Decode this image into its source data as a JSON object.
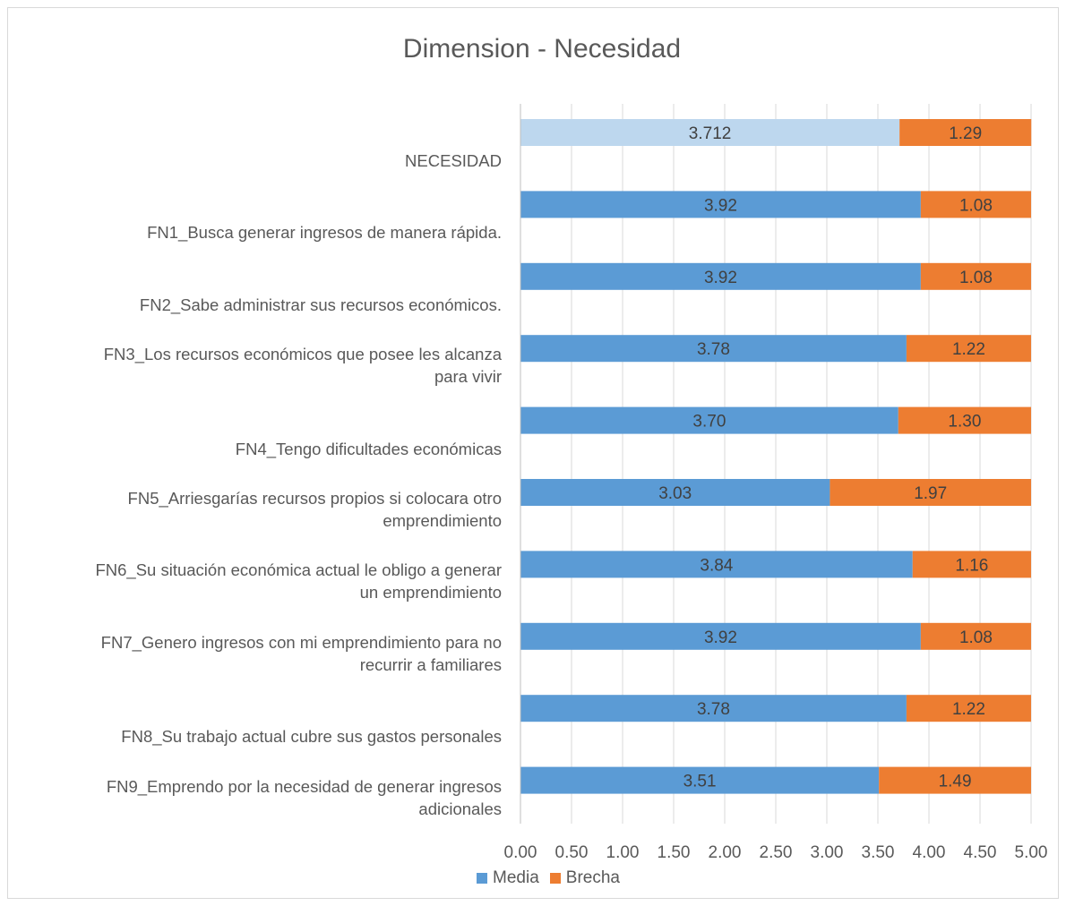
{
  "chart_data": {
    "type": "bar",
    "orientation": "horizontal",
    "stacked": true,
    "title": "Dimension - Necesidad",
    "xlabel": "",
    "ylabel": "",
    "xlim": [
      0,
      5
    ],
    "x_ticks": [
      "0.00",
      "0.50",
      "1.00",
      "1.50",
      "2.00",
      "2.50",
      "3.00",
      "3.50",
      "4.00",
      "4.50",
      "5.00"
    ],
    "grid": true,
    "legend_position": "bottom",
    "categories": [
      "NECESIDAD",
      "FN1_Busca generar ingresos de manera rápida.",
      "FN2_Sabe administrar sus recursos económicos.",
      "FN3_Los recursos económicos que posee les alcanza para vivir",
      "FN4_Tengo dificultades económicas",
      "FN5_Arriesgarías recursos propios si colocara otro emprendimiento",
      "FN6_Su situación económica actual le obligo a generar un emprendimiento",
      "FN7_Genero ingresos con mi emprendimiento para no recurrir a familiares",
      "FN8_Su trabajo actual cubre sus gastos personales",
      "FN9_Emprendo por la necesidad de generar ingresos adicionales"
    ],
    "category_lines": [
      [
        "NECESIDAD"
      ],
      [
        "FN1_Busca generar ingresos de manera rápida."
      ],
      [
        "FN2_Sabe administrar sus recursos económicos."
      ],
      [
        "FN3_Los recursos económicos que posee les alcanza",
        "para vivir"
      ],
      [
        "FN4_Tengo dificultades económicas"
      ],
      [
        "FN5_Arriesgarías recursos propios si colocara otro",
        "emprendimiento"
      ],
      [
        "FN6_Su situación económica actual le obligo a generar",
        "un emprendimiento"
      ],
      [
        "FN7_Genero ingresos con mi emprendimiento para no",
        "recurrir a familiares"
      ],
      [
        "FN8_Su trabajo actual cubre sus gastos personales"
      ],
      [
        "FN9_Emprendo por la necesidad de generar ingresos",
        "adicionales"
      ]
    ],
    "series": [
      {
        "name": "Media",
        "color": "#5b9bd5",
        "highlight_color": "#bdd7ee",
        "values": [
          3.712,
          3.92,
          3.92,
          3.78,
          3.7,
          3.03,
          3.84,
          3.92,
          3.78,
          3.51
        ],
        "labels": [
          "3.712",
          "3.92",
          "3.92",
          "3.78",
          "3.70",
          "3.03",
          "3.84",
          "3.92",
          "3.78",
          "3.51"
        ]
      },
      {
        "name": "Brecha",
        "color": "#ed7d31",
        "values": [
          1.29,
          1.08,
          1.08,
          1.22,
          1.3,
          1.97,
          1.16,
          1.08,
          1.22,
          1.49
        ],
        "labels": [
          "1.29",
          "1.08",
          "1.08",
          "1.22",
          "1.30",
          "1.97",
          "1.16",
          "1.08",
          "1.22",
          "1.49"
        ]
      }
    ]
  }
}
